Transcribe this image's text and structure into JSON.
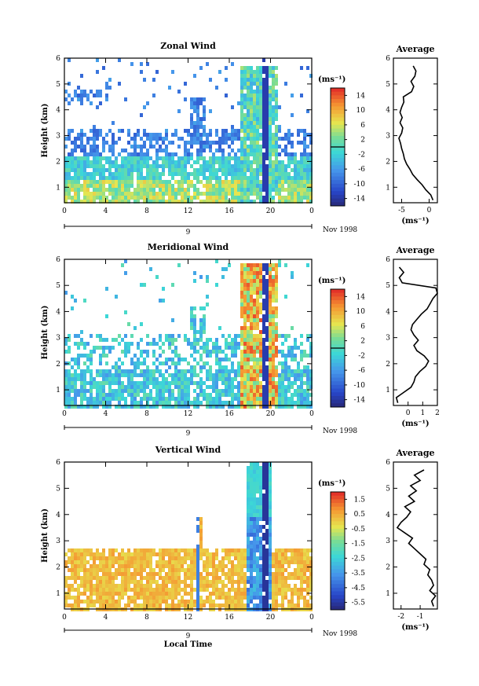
{
  "chart_data": [
    {
      "type": "heatmap",
      "title": "Zonal Wind",
      "ylabel": "Height (km)",
      "yticks": [
        "1",
        "2",
        "3",
        "4",
        "5",
        "6"
      ],
      "ylim": [
        0.4,
        6
      ],
      "xticks": [
        "0",
        "4",
        "8",
        "12",
        "16",
        "20",
        "0"
      ],
      "xlim": [
        0,
        24
      ],
      "date_label": "9",
      "month_label": "Nov 1998",
      "colorbar": {
        "unit": "(ms⁻¹)",
        "ticks": [
          "14",
          "10",
          "6",
          "2",
          "-2",
          "-6",
          "-10",
          "-14"
        ],
        "range": [
          -16,
          16
        ]
      },
      "profile": {
        "title": "Average",
        "unit": "(ms⁻¹)",
        "xticks": [
          "-5",
          "0"
        ],
        "tick_values": [
          -5,
          0
        ],
        "xlim": [
          -6.5,
          1.5
        ],
        "heights": [
          0.5,
          0.7,
          0.9,
          1.1,
          1.3,
          1.5,
          1.7,
          1.9,
          2.1,
          2.3,
          2.5,
          2.7,
          2.9,
          3.1,
          3.3,
          3.5,
          3.7,
          3.9,
          4.1,
          4.3,
          4.5,
          4.7,
          4.9,
          5.1,
          5.3,
          5.5,
          5.7
        ],
        "values": [
          0.7,
          0.3,
          -0.6,
          -1.3,
          -2.2,
          -3.0,
          -3.5,
          -4.1,
          -4.5,
          -4.7,
          -5.0,
          -5.2,
          -5.5,
          -5.0,
          -4.8,
          -5.3,
          -4.9,
          -5.3,
          -5.0,
          -4.6,
          -4.7,
          -3.2,
          -2.8,
          -3.3,
          -2.6,
          -2.4,
          -2.9
        ]
      }
    },
    {
      "type": "heatmap",
      "title": "Meridional Wind",
      "ylabel": "Height (km)",
      "yticks": [
        "1",
        "2",
        "3",
        "4",
        "5",
        "6"
      ],
      "ylim": [
        0.4,
        6
      ],
      "xticks": [
        "0",
        "4",
        "8",
        "12",
        "16",
        "20",
        "0"
      ],
      "xlim": [
        0,
        24
      ],
      "date_label": "9",
      "month_label": "Nov 1998",
      "colorbar": {
        "unit": "(ms⁻¹)",
        "ticks": [
          "14",
          "10",
          "6",
          "2",
          "-2",
          "-6",
          "-10",
          "-14"
        ],
        "range": [
          -16,
          16
        ]
      },
      "profile": {
        "title": "Average",
        "unit": "(ms⁻¹)",
        "xticks": [
          "0",
          "1",
          "2"
        ],
        "tick_values": [
          0,
          1,
          2
        ],
        "xlim": [
          -1,
          2
        ],
        "heights": [
          0.5,
          0.7,
          0.9,
          1.1,
          1.3,
          1.5,
          1.7,
          1.9,
          2.1,
          2.3,
          2.5,
          2.7,
          2.9,
          3.1,
          3.3,
          3.5,
          3.7,
          3.9,
          4.1,
          4.3,
          4.5,
          4.7,
          4.9,
          5.1,
          5.3,
          5.5,
          5.7
        ],
        "values": [
          -0.7,
          -0.8,
          -0.3,
          0.2,
          0.4,
          0.5,
          0.8,
          1.2,
          1.4,
          1.1,
          0.6,
          0.4,
          0.7,
          0.4,
          0.2,
          0.3,
          0.6,
          0.9,
          1.3,
          1.5,
          1.7,
          2.0,
          1.9,
          -0.4,
          -0.6,
          -0.3,
          -0.6
        ]
      }
    },
    {
      "type": "heatmap",
      "title": "Vertical Wind",
      "ylabel": "Height (km)",
      "xlabel": "Local Time",
      "yticks": [
        "1",
        "2",
        "3",
        "4",
        "5",
        "6"
      ],
      "ylim": [
        0.4,
        6
      ],
      "xticks": [
        "0",
        "4",
        "8",
        "12",
        "16",
        "20",
        "0"
      ],
      "xlim": [
        0,
        24
      ],
      "date_label": "9",
      "month_label": "Nov 1998",
      "colorbar": {
        "unit": "(ms⁻¹)",
        "ticks": [
          "1.5",
          "0.5",
          "-0.5",
          "-1.5",
          "-2.5",
          "-3.5",
          "-4.5",
          "-5.5"
        ],
        "range": [
          -6,
          2
        ]
      },
      "profile": {
        "title": "Average",
        "unit": "(ms⁻¹)",
        "xticks": [
          "-2",
          "-1"
        ],
        "tick_values": [
          -2,
          -1
        ],
        "xlim": [
          -2.4,
          -0.1
        ],
        "heights": [
          0.5,
          0.7,
          0.9,
          1.1,
          1.3,
          1.5,
          1.7,
          1.9,
          2.1,
          2.3,
          2.5,
          2.7,
          2.9,
          3.1,
          3.3,
          3.5,
          3.7,
          3.9,
          4.1,
          4.3,
          4.5,
          4.7,
          4.9,
          5.1,
          5.3,
          5.5,
          5.7
        ],
        "values": [
          -0.3,
          -0.4,
          -0.2,
          -0.5,
          -0.3,
          -0.4,
          -0.6,
          -0.5,
          -0.8,
          -0.7,
          -1.0,
          -1.3,
          -1.6,
          -1.4,
          -1.8,
          -2.2,
          -2.0,
          -1.7,
          -1.5,
          -1.8,
          -1.3,
          -1.6,
          -1.2,
          -1.5,
          -1.0,
          -1.3,
          -0.8
        ]
      }
    }
  ]
}
